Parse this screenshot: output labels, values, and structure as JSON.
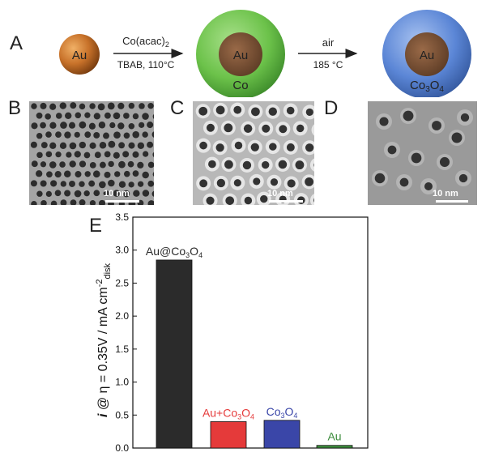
{
  "panels": {
    "A": "A",
    "B": "B",
    "C": "C",
    "D": "D",
    "E": "E"
  },
  "schematic": {
    "core_label": "Au",
    "step1_reagent": "Co(acac)",
    "step1_reagent_sub": "2",
    "step1_conditions": "TBAB, 110°C",
    "shell1_core": "Au",
    "shell1_label": "Co",
    "step2_reagent": "air",
    "step2_conditions": "185 °C",
    "shell2_core": "Au",
    "shell2_label_prefix": "Co",
    "shell2_label_sub1": "3",
    "shell2_label_mid": "O",
    "shell2_label_sub2": "4"
  },
  "tem_images": [
    {
      "panel": "B",
      "scale": "10 nm"
    },
    {
      "panel": "C",
      "scale": "10 nm"
    },
    {
      "panel": "D",
      "scale": "10 nm"
    }
  ],
  "colors": {
    "au_core": "#c8722a",
    "co_shell": "#6cc24a",
    "co3o4_shell": "#5b86d6",
    "bar_au_co3o4": "#2b2b2b",
    "bar_mix": "#e53a3a",
    "bar_co3o4": "#3a46a8",
    "bar_au": "#3c8c3c"
  },
  "chart_data": {
    "type": "bar",
    "categories": [
      "Au@Co3O4",
      "Au+Co3O4",
      "Co3O4",
      "Au"
    ],
    "values": [
      2.85,
      0.4,
      0.42,
      0.04
    ],
    "ylabel": "i @ η = 0.35V / mA cm⁻²disk",
    "ylim": [
      0,
      3.5
    ],
    "yticks": [
      "0.0",
      "0.5",
      "1.0",
      "1.5",
      "2.0",
      "2.5",
      "3.0",
      "3.5"
    ],
    "bar_labels": [
      {
        "base": "Au@Co",
        "sub1": "3",
        "mid": "O",
        "sub2": "4"
      },
      {
        "base": "Au+Co",
        "sub1": "3",
        "mid": "O",
        "sub2": "4"
      },
      {
        "base": "Co",
        "sub1": "3",
        "mid": "O",
        "sub2": "4"
      },
      {
        "base": "Au",
        "sub1": "",
        "mid": "",
        "sub2": ""
      }
    ],
    "ylabel_parts": {
      "i": "i",
      "rest": " @ η = 0.35V / mA cm",
      "sup": "-2",
      "sub": "disk"
    },
    "grid": false
  }
}
